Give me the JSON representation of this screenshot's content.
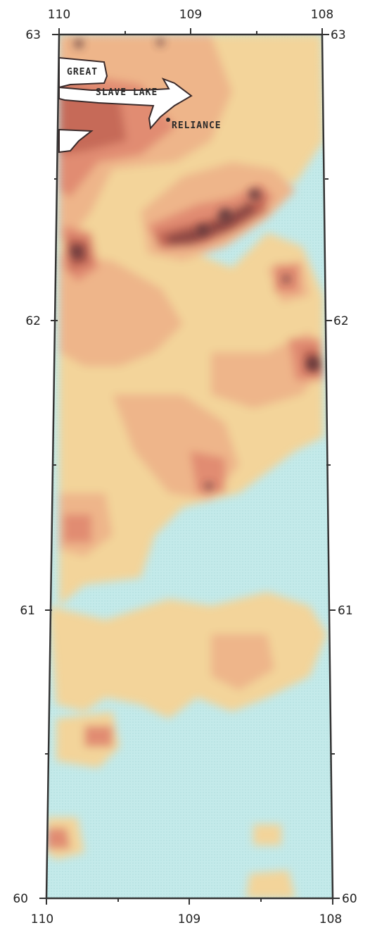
{
  "map": {
    "axes": {
      "top_labels": [
        "110",
        "109",
        "108"
      ],
      "bottom_labels": [
        "110",
        "109",
        "108"
      ],
      "left_labels": [
        "63",
        "62",
        "61",
        "60"
      ],
      "right_labels": [
        "63",
        "62",
        "61",
        "60"
      ]
    },
    "features": {
      "lake_label_line1": "GREAT",
      "lake_label_line2": "SLAVE LAKE",
      "town_label": "RELIANCE"
    },
    "colors": {
      "background_low": "#c4eaea",
      "level_1": "#f3d49a",
      "level_2": "#eeb58a",
      "level_3": "#e18c72",
      "level_4": "#c66a58",
      "level_5": "#8d4a44",
      "level_6": "#56363a",
      "lake_fill": "#ffffff",
      "frame": "#333333"
    }
  }
}
